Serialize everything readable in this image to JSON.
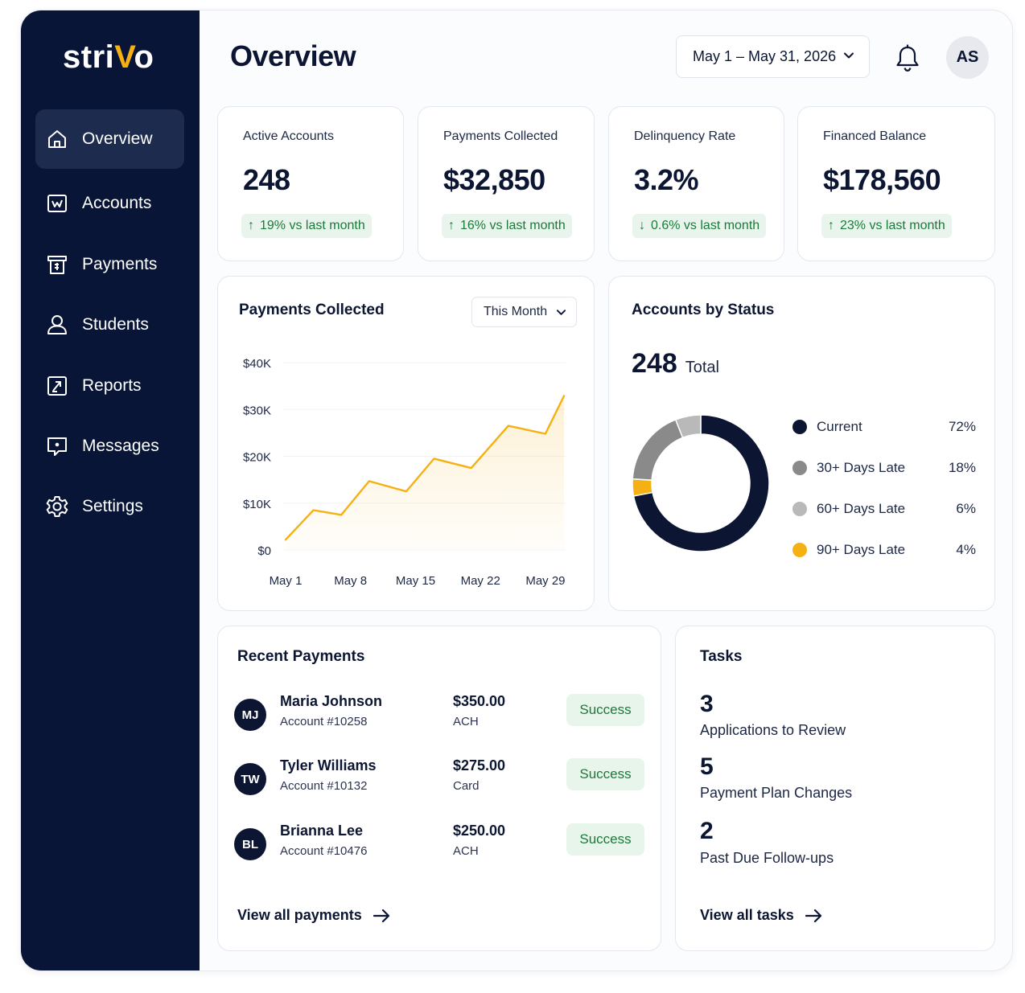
{
  "brand": {
    "logo_prefix": "stri",
    "logo_accent": "V",
    "logo_suffix": "o",
    "accent_color": "#f5b014",
    "sidebar_color": "#081536"
  },
  "sidebar": {
    "items": [
      {
        "label": "Overview",
        "icon": "home-icon",
        "active": true
      },
      {
        "label": "Accounts",
        "icon": "accounts-icon",
        "active": false
      },
      {
        "label": "Payments",
        "icon": "payments-icon",
        "active": false
      },
      {
        "label": "Students",
        "icon": "user-icon",
        "active": false
      },
      {
        "label": "Reports",
        "icon": "reports-icon",
        "active": false
      },
      {
        "label": "Messages",
        "icon": "message-icon",
        "active": false
      },
      {
        "label": "Settings",
        "icon": "gear-icon",
        "active": false
      }
    ]
  },
  "header": {
    "title": "Overview",
    "date_range": "May 1 – May 31, 2026",
    "user_initials": "AS",
    "bell_icon": "bell-icon"
  },
  "kpis": [
    {
      "label": "Active Accounts",
      "value": "248",
      "change": "19% vs last month",
      "direction": "up"
    },
    {
      "label": "Payments Collected",
      "value": "$32,850",
      "change": "16% vs last month",
      "direction": "up"
    },
    {
      "label": "Delinquency Rate",
      "value": "3.2%",
      "change": "0.6% vs last month",
      "direction": "down"
    },
    {
      "label": "Financed Balance",
      "value": "$178,560",
      "change": "23% vs last month",
      "direction": "up"
    }
  ],
  "payments_chart": {
    "title": "Payments Collected",
    "period_select": "This Month"
  },
  "status_chart": {
    "title": "Accounts by Status",
    "total_value": "248",
    "total_label": "Total"
  },
  "chart_data": [
    {
      "type": "area",
      "title": "Payments Collected",
      "xlabel": "",
      "ylabel": "",
      "x_ticks": [
        "May 1",
        "May 8",
        "May 15",
        "May 22",
        "May 29"
      ],
      "y_ticks": [
        "$0",
        "$10K",
        "$20K",
        "$30K",
        "$40K"
      ],
      "ylim": [
        0,
        40000
      ],
      "x_range": [
        1,
        31
      ],
      "x": [
        1,
        4,
        7,
        10,
        14,
        17,
        21,
        25,
        29,
        31
      ],
      "values": [
        2200,
        8500,
        7500,
        14700,
        12500,
        19500,
        17500,
        26500,
        24800,
        32900
      ],
      "line_color": "#f5b014",
      "grid": true
    },
    {
      "type": "pie",
      "title": "Accounts by Status",
      "donut": true,
      "labels": [
        "Current",
        "30+ Days Late",
        "60+ Days Late",
        "90+ Days Late"
      ],
      "values": [
        72,
        18,
        6,
        4
      ],
      "display": [
        "72%",
        "18%",
        "6%",
        "4%"
      ],
      "colors": [
        "#0c1633",
        "#8a8a8a",
        "#b9b9b9",
        "#f5b014"
      ]
    }
  ],
  "recent_payments": {
    "title": "Recent Payments",
    "rows": [
      {
        "initials": "MJ",
        "name": "Maria Johnson",
        "account": "Account #10258",
        "amount": "$350.00",
        "method": "ACH",
        "status": "Success"
      },
      {
        "initials": "TW",
        "name": "Tyler Williams",
        "account": "Account #10132",
        "amount": "$275.00",
        "method": "Card",
        "status": "Success"
      },
      {
        "initials": "BL",
        "name": "Brianna Lee",
        "account": "Account #10476",
        "amount": "$250.00",
        "method": "ACH",
        "status": "Success"
      }
    ],
    "view_all": "View all payments"
  },
  "tasks": {
    "title": "Tasks",
    "items": [
      {
        "count": "3",
        "label": "Applications to Review"
      },
      {
        "count": "5",
        "label": "Payment Plan Changes"
      },
      {
        "count": "2",
        "label": "Past Due Follow-ups"
      }
    ],
    "view_all": "View all tasks"
  }
}
